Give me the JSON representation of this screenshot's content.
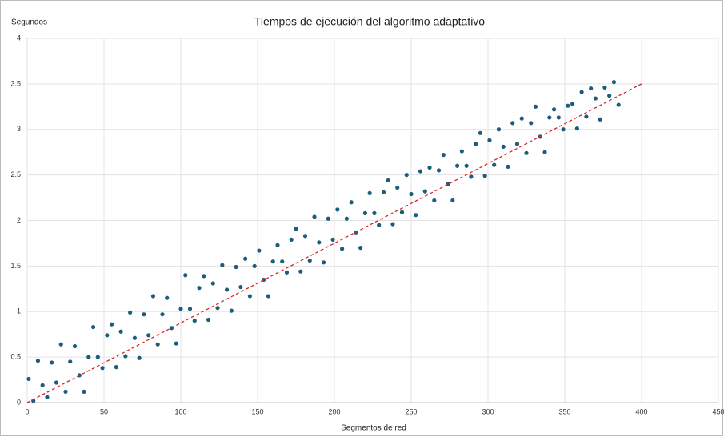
{
  "chart_data": {
    "type": "scatter",
    "title": "Tiempos de ejecución del algoritmo adaptativo",
    "y_label": "Segundos",
    "x_label": "Segmentos de red",
    "xlim": [
      0,
      450
    ],
    "xticks": [
      0,
      50,
      100,
      150,
      200,
      250,
      300,
      350,
      400,
      450
    ],
    "ylim": [
      0,
      4
    ],
    "yticks": [
      0,
      0.5,
      1,
      1.5,
      2,
      2.5,
      3,
      3.5,
      4
    ],
    "grid": true,
    "color": "#1b5e7b",
    "x": [
      1,
      4,
      7,
      10,
      13,
      16,
      19,
      22,
      25,
      28,
      31,
      34,
      37,
      40,
      43,
      46,
      49,
      52,
      55,
      58,
      61,
      64,
      67,
      70,
      73,
      76,
      79,
      82,
      85,
      88,
      91,
      94,
      97,
      100,
      103,
      106,
      109,
      112,
      115,
      118,
      121,
      124,
      127,
      130,
      133,
      136,
      139,
      142,
      145,
      148,
      151,
      154,
      157,
      160,
      163,
      166,
      169,
      172,
      175,
      178,
      181,
      184,
      187,
      190,
      193,
      196,
      199,
      202,
      205,
      208,
      211,
      214,
      217,
      220,
      223,
      226,
      229,
      232,
      235,
      238,
      241,
      244,
      247,
      250,
      253,
      256,
      259,
      262,
      265,
      268,
      271,
      274,
      277,
      280,
      283,
      286,
      289,
      292,
      295,
      298,
      301,
      304,
      307,
      310,
      313,
      316,
      319,
      322,
      325,
      328,
      331,
      334,
      337,
      340,
      343,
      346,
      349,
      352,
      355,
      358,
      361,
      364,
      367,
      370,
      373,
      376,
      379,
      382,
      385
    ],
    "values": [
      0.26,
      0.02,
      0.46,
      0.19,
      0.06,
      0.44,
      0.22,
      0.64,
      0.12,
      0.45,
      0.62,
      0.3,
      0.12,
      0.5,
      0.83,
      0.5,
      0.38,
      0.74,
      0.86,
      0.39,
      0.78,
      0.51,
      0.99,
      0.71,
      0.49,
      0.97,
      0.74,
      1.17,
      0.64,
      0.97,
      1.15,
      0.82,
      0.65,
      1.03,
      1.4,
      1.03,
      0.9,
      1.26,
      1.39,
      0.91,
      1.31,
      1.04,
      1.51,
      1.24,
      1.01,
      1.49,
      1.27,
      1.58,
      1.17,
      1.5,
      1.67,
      1.35,
      1.17,
      1.55,
      1.73,
      1.55,
      1.43,
      1.79,
      1.91,
      1.44,
      1.83,
      1.56,
      2.04,
      1.76,
      1.54,
      2.02,
      1.79,
      2.12,
      1.69,
      2.02,
      2.2,
      1.87,
      1.7,
      2.08,
      2.3,
      2.08,
      1.95,
      2.31,
      2.44,
      1.96,
      2.36,
      2.09,
      2.5,
      2.29,
      2.06,
      2.54,
      2.32,
      2.58,
      2.22,
      2.55,
      2.72,
      2.4,
      2.22,
      2.6,
      2.76,
      2.6,
      2.48,
      2.84,
      2.96,
      2.49,
      2.88,
      2.61,
      3.0,
      2.81,
      2.59,
      3.07,
      2.84,
      3.12,
      2.74,
      3.07,
      3.25,
      2.92,
      2.75,
      3.13,
      3.22,
      3.13,
      3.0,
      3.26,
      3.28,
      3.01,
      3.41,
      3.14,
      3.45,
      3.34,
      3.11,
      3.46,
      3.37,
      3.52,
      3.27
    ],
    "trendline": {
      "x": [
        0,
        400
      ],
      "values": [
        0,
        3.5
      ],
      "color": "#d62728",
      "dashed": true
    }
  }
}
